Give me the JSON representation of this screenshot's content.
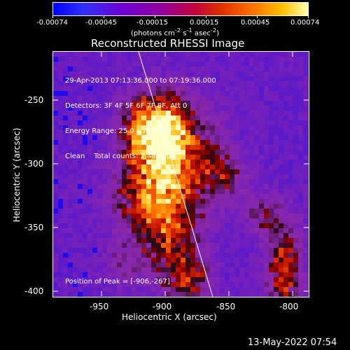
{
  "colorbar": {
    "tick_labels": [
      "-0.00074",
      "-0.00045",
      "-0.00015",
      "0.00015",
      "0.00045",
      "0.00074"
    ],
    "unit_html": "(photons cm<sup>-2</sup> s<sup>-1</sup> asec<sup>-2</sup>)"
  },
  "plot": {
    "title": "Reconstructed RHESSI Image",
    "xlabel": "Heliocentric X (arcsec)",
    "ylabel": "Heliocentric Y (arcsec)",
    "xticks": [
      "-950",
      "-900",
      "-850",
      "-800"
    ],
    "yticks": [
      "-250",
      "-300",
      "-350",
      "-400"
    ],
    "info_lines": [
      "29-Apr-2013 07:13:36.000 to 07:19:36.000",
      "Detectors: 3F 4F 5F 6F 7F 8F, Att 0",
      "Energy Range: 25.0 - 50.0 keV",
      "Clean    Total counts: 2.48E+04"
    ],
    "peak_text": "Position of Peak = [-906,-267]"
  },
  "footer": {
    "timestamp": "13-May-2022 07:54"
  },
  "colors": {
    "background": "#000000",
    "foreground": "#ffffff",
    "limb_line": "#ffffff"
  }
}
